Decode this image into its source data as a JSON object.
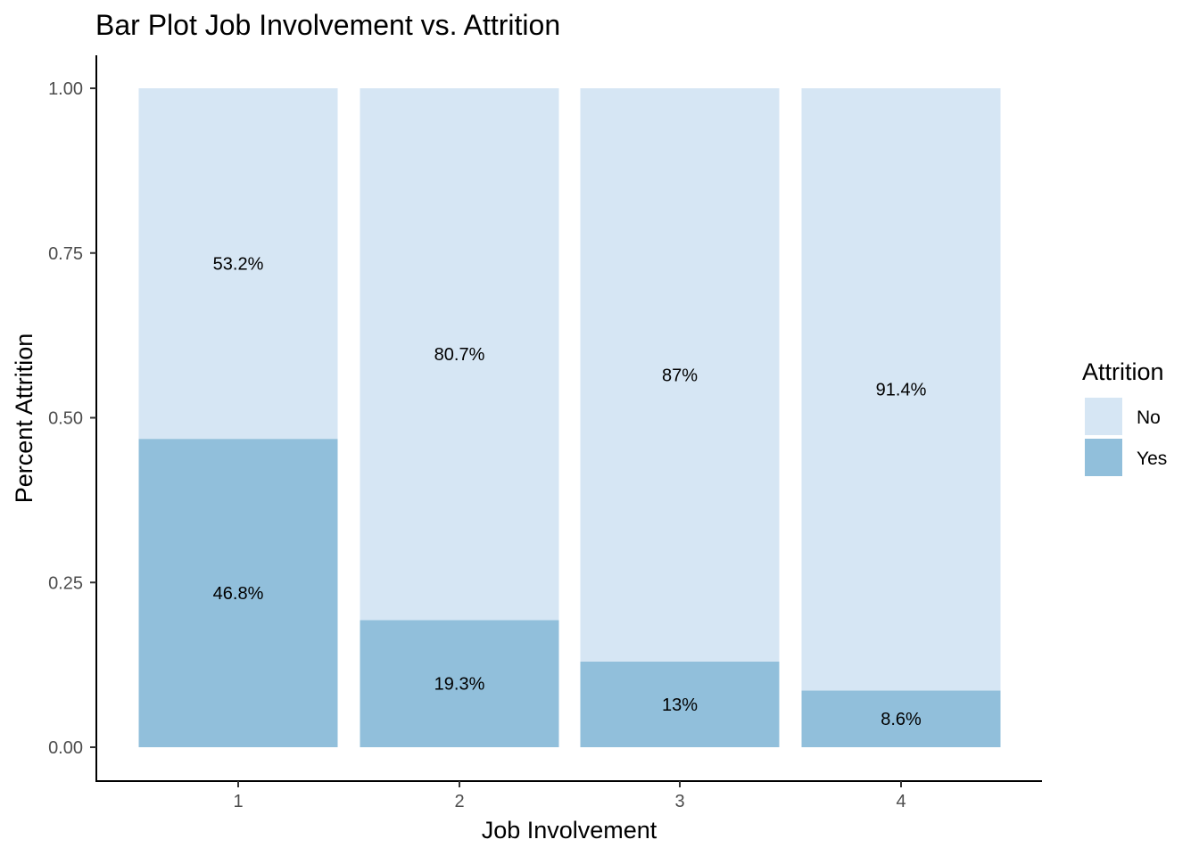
{
  "chart_data": {
    "type": "bar",
    "stacked": true,
    "title": "Bar Plot Job Involvement vs. Attrition",
    "xlabel": "Job Involvement",
    "ylabel": "Percent Attrition",
    "categories": [
      "1",
      "2",
      "3",
      "4"
    ],
    "ylim": [
      0,
      1
    ],
    "yticks": [
      "0.00",
      "0.25",
      "0.50",
      "0.75",
      "1.00"
    ],
    "ytick_values": [
      0,
      0.25,
      0.5,
      0.75,
      1.0
    ],
    "grid": false,
    "legend": {
      "title": "Attrition",
      "position": "right"
    },
    "series": [
      {
        "name": "Yes",
        "color": "#91bfdb",
        "values": [
          0.468,
          0.193,
          0.13,
          0.086
        ],
        "labels": [
          "46.8%",
          "19.3%",
          "13%",
          "8.6%"
        ]
      },
      {
        "name": "No",
        "color": "#d6e6f4",
        "values": [
          0.532,
          0.807,
          0.87,
          0.914
        ],
        "labels": [
          "53.2%",
          "80.7%",
          "87%",
          "91.4%"
        ]
      }
    ],
    "legend_order": [
      "No",
      "Yes"
    ]
  }
}
